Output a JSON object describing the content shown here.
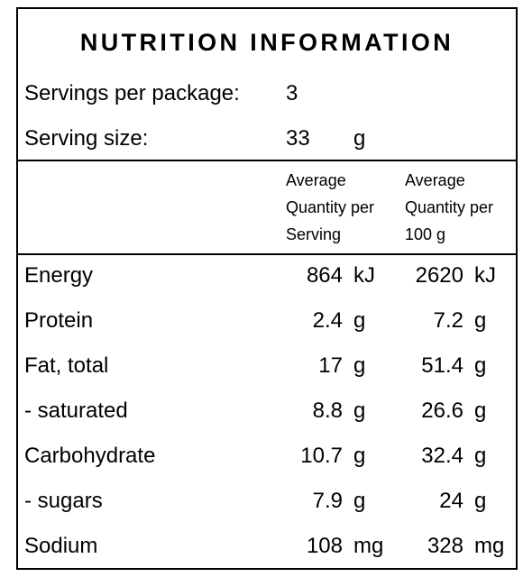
{
  "header": {
    "title": "NUTRITION INFORMATION",
    "servings_label": "Servings per package:",
    "servings_value": 3,
    "serving_size_label": "Serving size:",
    "serving_size_value": 33,
    "serving_size_unit": "g"
  },
  "table": {
    "columns": [
      "Average Quantity per Serving",
      "Average Quantity per 100 g"
    ],
    "rows": [
      [
        "Energy",
        864,
        "kJ",
        2620,
        "kJ"
      ],
      [
        "Protein",
        2.4,
        "g",
        7.2,
        "g"
      ],
      [
        "Fat, total",
        17,
        "g",
        51.4,
        "g"
      ],
      [
        "- saturated",
        8.8,
        "g",
        26.6,
        "g"
      ],
      [
        "Carbohydrate",
        10.7,
        "g",
        32.4,
        "g"
      ],
      [
        "- sugars",
        7.9,
        "g",
        24,
        "g"
      ],
      [
        "Sodium",
        108,
        "mg",
        328,
        "mg"
      ]
    ]
  }
}
